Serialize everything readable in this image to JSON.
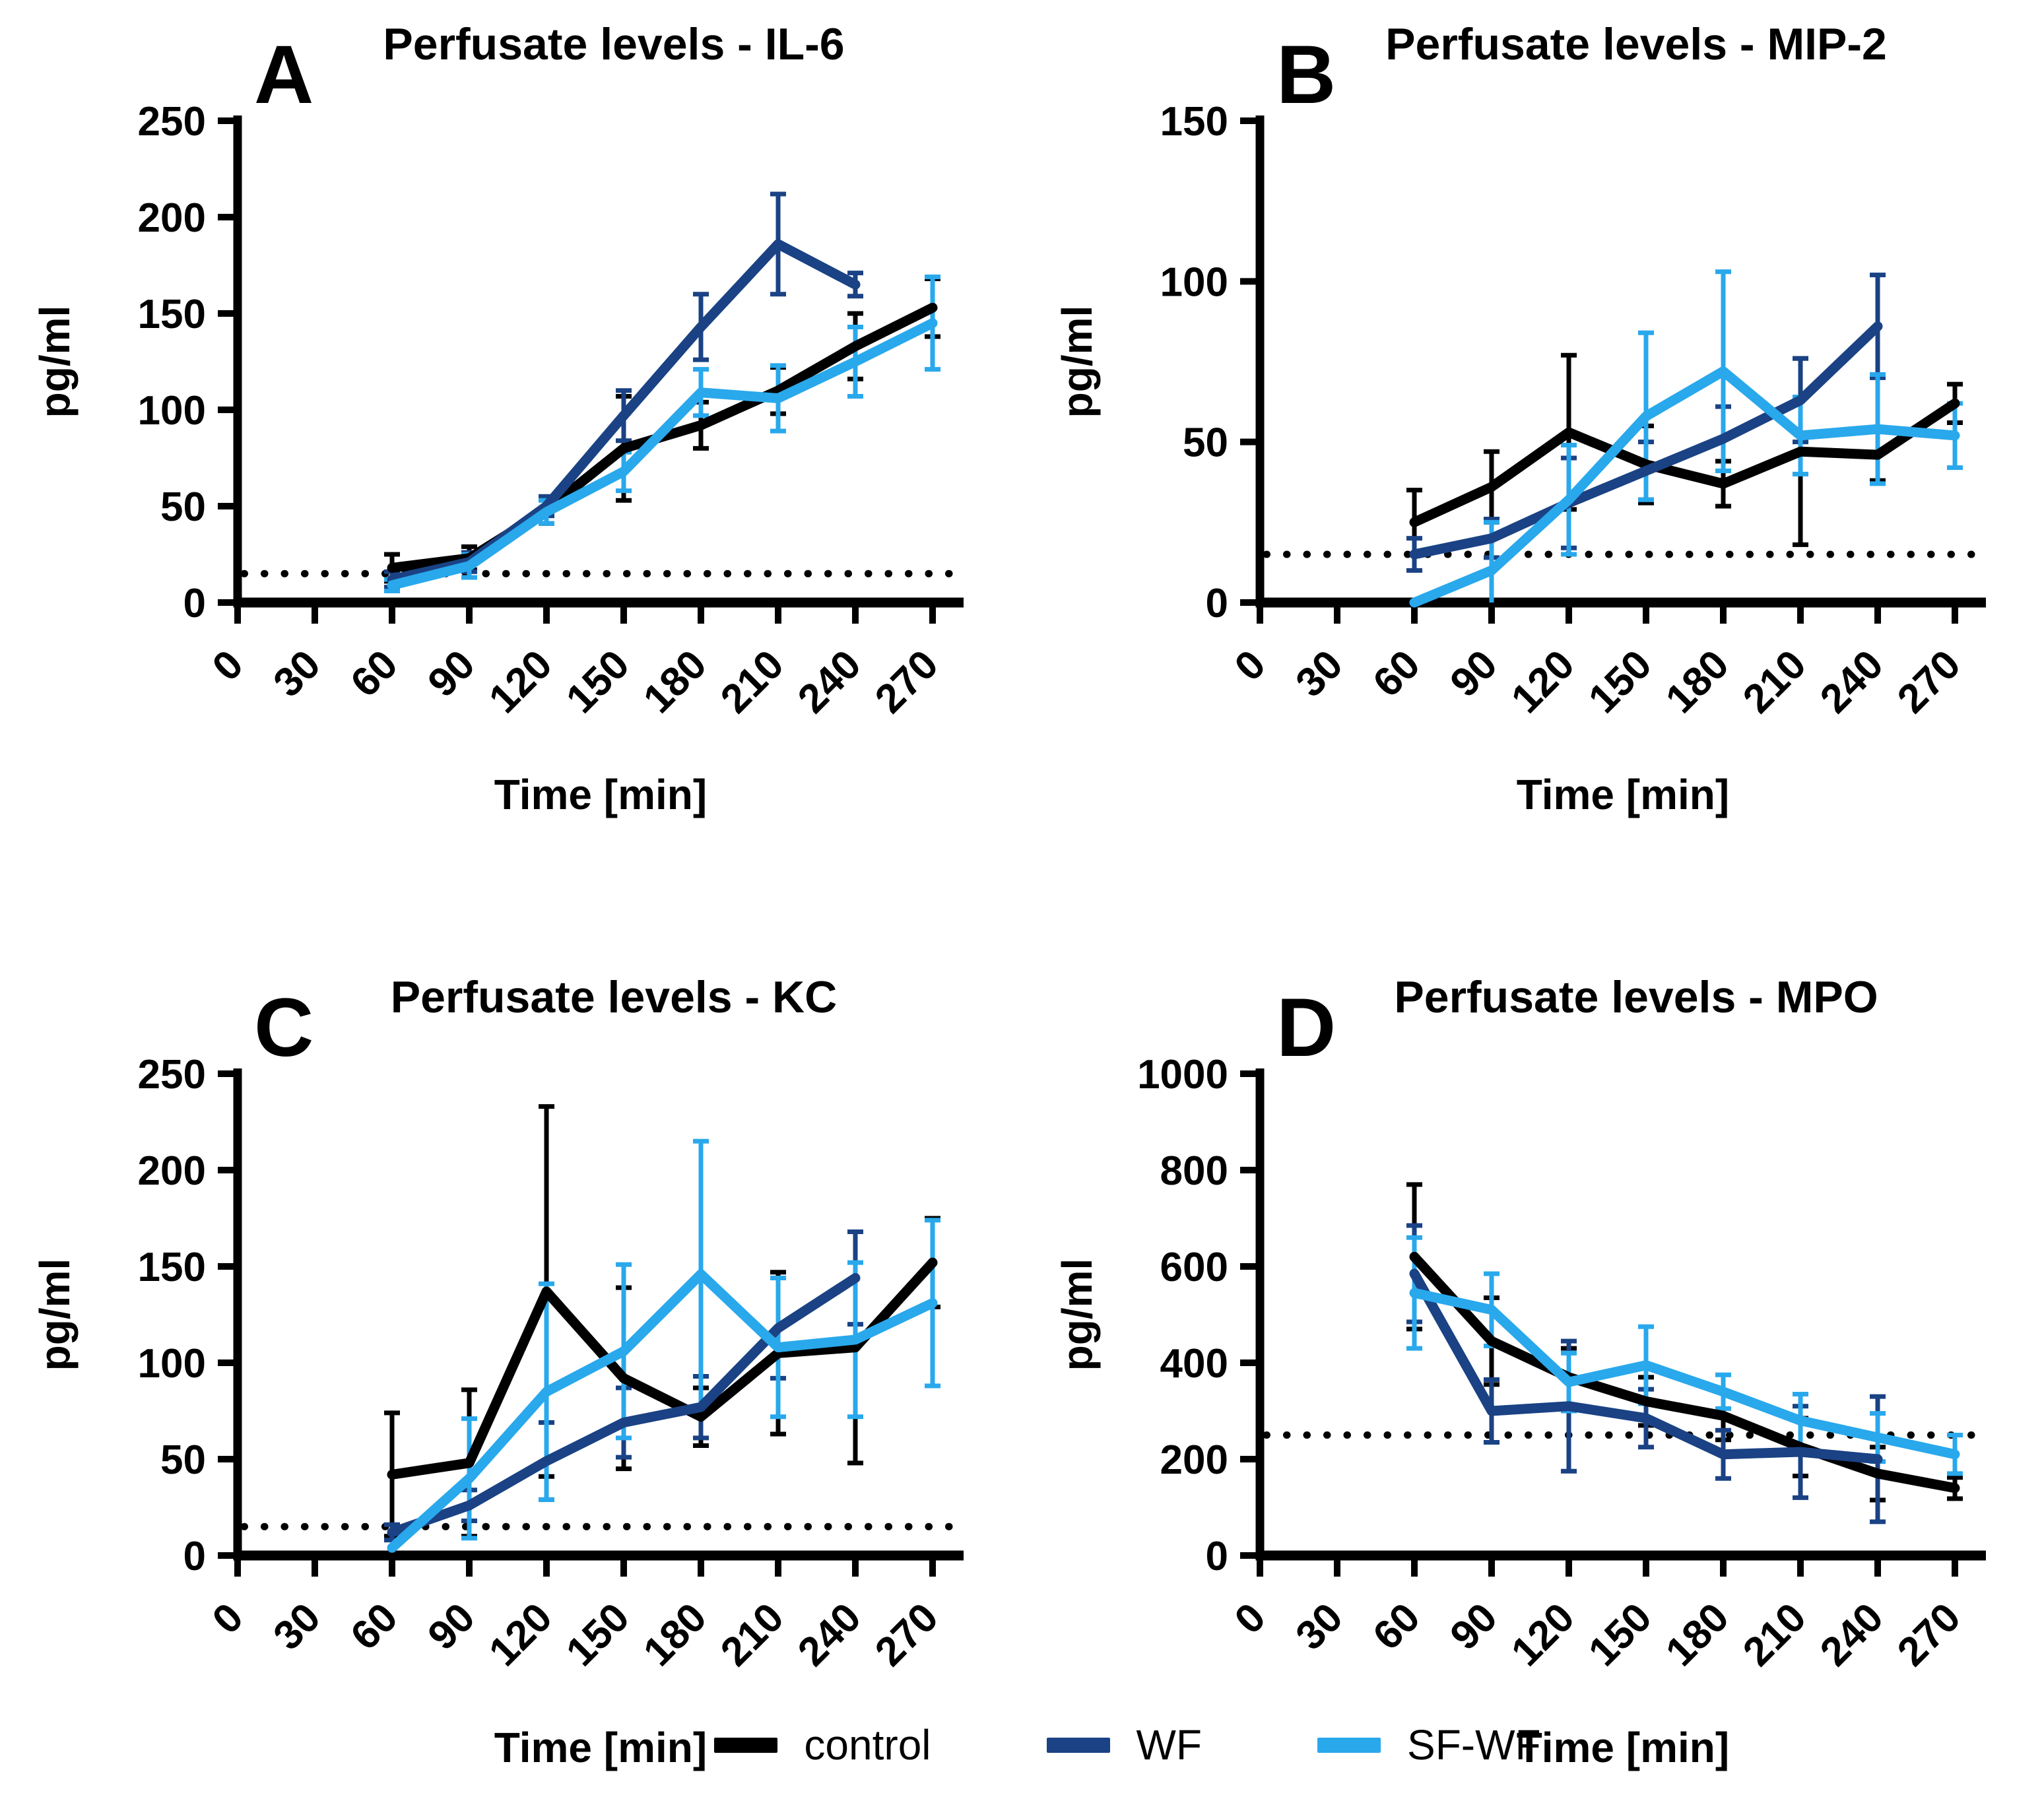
{
  "colors": {
    "control": "#000000",
    "wf": "#1A4284",
    "sf_wf": "#29A8EC",
    "axis": "#000000",
    "detection_limit_line": "#000000",
    "background": "#FFFFFF"
  },
  "legend": {
    "position": "bottom",
    "items": [
      {
        "label": "control",
        "color": "#000000"
      },
      {
        "label": "WF",
        "color": "#1A4284"
      },
      {
        "label": "SF-WF",
        "color": "#29A8EC"
      }
    ]
  },
  "chart_data": [
    {
      "panel": "A",
      "type": "line",
      "title": "Perfusate levels - IL-6",
      "xlabel": "Time [min]",
      "ylabel": "pg/ml",
      "xlim": [
        0,
        282
      ],
      "ylim": [
        0,
        250
      ],
      "xticks": [
        0,
        30,
        60,
        90,
        120,
        150,
        180,
        210,
        240,
        270
      ],
      "yticks": [
        0,
        50,
        100,
        150,
        200,
        250
      ],
      "detection_limit": 15,
      "grid": false,
      "series": [
        {
          "name": "control",
          "color": "#000000",
          "x": [
            60,
            90,
            120,
            150,
            180,
            210,
            240,
            270
          ],
          "y": [
            18,
            23,
            48,
            80,
            92,
            110,
            133,
            153
          ],
          "err": [
            7,
            6,
            7,
            27,
            12,
            12,
            17,
            15
          ]
        },
        {
          "name": "WF",
          "color": "#1A4284",
          "x": [
            60,
            90,
            120,
            150,
            180,
            210,
            240
          ],
          "y": [
            12,
            21,
            50,
            97,
            143,
            186,
            165
          ],
          "err": [
            4,
            5,
            5,
            13,
            17,
            26,
            6
          ]
        },
        {
          "name": "SF-WF",
          "color": "#29A8EC",
          "x": [
            60,
            90,
            120,
            150,
            180,
            210,
            240,
            270
          ],
          "y": [
            9,
            19,
            47,
            68,
            109,
            106,
            125,
            145
          ],
          "err": [
            3,
            6,
            6,
            10,
            12,
            17,
            18,
            24
          ]
        }
      ]
    },
    {
      "panel": "B",
      "type": "line",
      "title": "Perfusate levels - MIP-2",
      "xlabel": "Time [min]",
      "ylabel": "pg/ml",
      "xlim": [
        0,
        282
      ],
      "ylim": [
        0,
        150
      ],
      "xticks": [
        0,
        30,
        60,
        90,
        120,
        150,
        180,
        210,
        240,
        270
      ],
      "yticks": [
        0,
        50,
        100,
        150
      ],
      "detection_limit": 15,
      "grid": false,
      "series": [
        {
          "name": "control",
          "color": "#000000",
          "x": [
            60,
            90,
            120,
            150,
            180,
            210,
            240,
            270
          ],
          "y": [
            25,
            36,
            53,
            43,
            37,
            47,
            46,
            62
          ],
          "err": [
            10,
            11,
            24,
            12,
            7,
            29,
            8,
            6
          ]
        },
        {
          "name": "WF",
          "color": "#1A4284",
          "x": [
            60,
            90,
            120,
            150,
            180,
            210,
            240
          ],
          "y": [
            15,
            20,
            31,
            41,
            51,
            63,
            86
          ],
          "err": [
            5,
            6,
            14,
            9,
            10,
            13,
            16
          ]
        },
        {
          "name": "SF-WF",
          "color": "#29A8EC",
          "x": [
            60,
            90,
            120,
            150,
            180,
            210,
            240,
            270
          ],
          "y": [
            0,
            10,
            32,
            58,
            72,
            52,
            54,
            52
          ],
          "err": [
            0,
            15,
            17,
            26,
            31,
            12,
            17,
            10
          ]
        }
      ]
    },
    {
      "panel": "C",
      "type": "line",
      "title": "Perfusate levels - KC",
      "xlabel": "Time [min]",
      "ylabel": "pg/ml",
      "xlim": [
        0,
        282
      ],
      "ylim": [
        0,
        250
      ],
      "xticks": [
        0,
        30,
        60,
        90,
        120,
        150,
        180,
        210,
        240,
        270
      ],
      "yticks": [
        0,
        50,
        100,
        150,
        200,
        250
      ],
      "detection_limit": 15,
      "grid": false,
      "series": [
        {
          "name": "control",
          "color": "#000000",
          "x": [
            60,
            90,
            120,
            150,
            180,
            210,
            240,
            270
          ],
          "y": [
            42,
            48,
            137,
            92,
            72,
            105,
            108,
            152
          ],
          "err": [
            32,
            38,
            96,
            47,
            15,
            42,
            60,
            23
          ]
        },
        {
          "name": "WF",
          "color": "#1A4284",
          "x": [
            60,
            90,
            120,
            150,
            180,
            210,
            240
          ],
          "y": [
            12,
            26,
            49,
            69,
            77,
            118,
            144
          ],
          "err": [
            4,
            8,
            20,
            18,
            16,
            26,
            24
          ]
        },
        {
          "name": "SF-WF",
          "color": "#29A8EC",
          "x": [
            60,
            90,
            120,
            150,
            180,
            210,
            240,
            270
          ],
          "y": [
            4,
            40,
            85,
            106,
            146,
            108,
            112,
            131
          ],
          "err": [
            2,
            31,
            56,
            45,
            69,
            36,
            40,
            43
          ]
        }
      ]
    },
    {
      "panel": "D",
      "type": "line",
      "title": "Perfusate levels - MPO",
      "xlabel": "Time [min]",
      "ylabel": "pg/ml",
      "xlim": [
        0,
        282
      ],
      "ylim": [
        0,
        1000
      ],
      "xticks": [
        0,
        30,
        60,
        90,
        120,
        150,
        180,
        210,
        240,
        270
      ],
      "yticks": [
        0,
        200,
        400,
        600,
        800,
        1000
      ],
      "detection_limit": 250,
      "grid": false,
      "series": [
        {
          "name": "control",
          "color": "#000000",
          "x": [
            60,
            90,
            120,
            150,
            180,
            210,
            240,
            270
          ],
          "y": [
            620,
            445,
            370,
            320,
            290,
            225,
            170,
            140
          ],
          "err": [
            150,
            90,
            60,
            50,
            50,
            60,
            55,
            22
          ]
        },
        {
          "name": "WF",
          "color": "#1A4284",
          "x": [
            60,
            90,
            120,
            150,
            180,
            210,
            240
          ],
          "y": [
            585,
            300,
            310,
            285,
            210,
            215,
            200
          ],
          "err": [
            100,
            65,
            135,
            60,
            50,
            95,
            130
          ]
        },
        {
          "name": "SF-WF",
          "color": "#29A8EC",
          "x": [
            60,
            90,
            120,
            150,
            180,
            210,
            240,
            270
          ],
          "y": [
            545,
            510,
            360,
            395,
            340,
            280,
            245,
            210
          ],
          "err": [
            115,
            75,
            60,
            80,
            35,
            55,
            50,
            40
          ]
        }
      ]
    }
  ]
}
